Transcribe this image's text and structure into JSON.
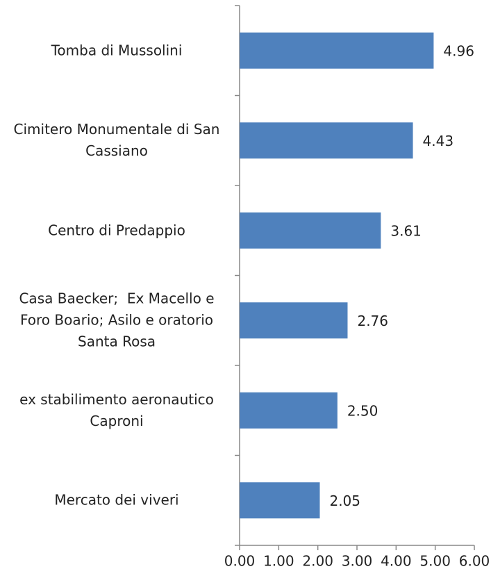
{
  "chart_data": {
    "type": "bar",
    "orientation": "horizontal",
    "categories": [
      "Tomba di Mussolini",
      "Cimitero Monumentale di San Cassiano",
      "Centro di Predappio",
      "Casa Baecker;  Ex Macello e Foro Boario; Asilo e oratorio Santa Rosa",
      "ex stabilimento aeronautico Caproni",
      "Mercato dei viveri"
    ],
    "values": [
      4.96,
      4.43,
      3.61,
      2.76,
      2.5,
      2.05
    ],
    "value_labels": [
      "4.96",
      "4.43",
      "3.61",
      "2.76",
      "2.50",
      "2.05"
    ],
    "color": "#4f81bd",
    "xlim": [
      0,
      6
    ],
    "xticks": [
      {
        "value": 0,
        "label": "0.00"
      },
      {
        "value": 1,
        "label": "1.00"
      },
      {
        "value": 2,
        "label": "2.00"
      },
      {
        "value": 3,
        "label": "3.00"
      },
      {
        "value": 4,
        "label": "4.00"
      },
      {
        "value": 5,
        "label": "5.00"
      },
      {
        "value": 6,
        "label": "6.00"
      }
    ],
    "grid": false
  }
}
